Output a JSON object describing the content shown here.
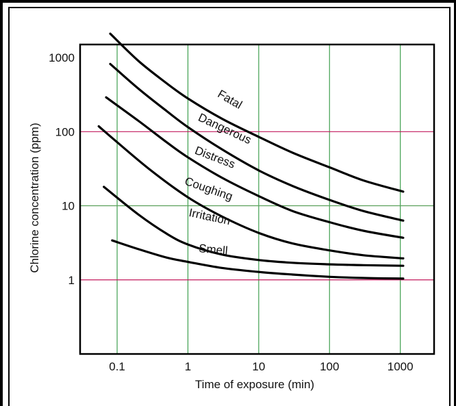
{
  "chart_data": {
    "type": "line",
    "title": "",
    "xlabel": "Time of exposure (min)",
    "ylabel": "Chlorine concentration (ppm)",
    "x_scale": "log",
    "y_scale": "log",
    "xlim": [
      0.03,
      3000
    ],
    "ylim": [
      0.1,
      1500
    ],
    "x_ticks": [
      {
        "value": 0.1,
        "label": "0.1"
      },
      {
        "value": 1,
        "label": "1"
      },
      {
        "value": 10,
        "label": "10"
      },
      {
        "value": 100,
        "label": "100"
      },
      {
        "value": 1000,
        "label": "1000"
      }
    ],
    "y_ticks": [
      {
        "value": 1,
        "label": "1"
      },
      {
        "value": 10,
        "label": "10"
      },
      {
        "value": 100,
        "label": "100"
      },
      {
        "value": 1000,
        "label": "1000"
      }
    ],
    "grid": true,
    "colors": {
      "grid_horizontal_100": "#c2185b",
      "grid_horizontal_10": "#5aa05a",
      "grid_horizontal_1": "#c2185b",
      "grid_vertical": "#3f9f4f",
      "curves": "#000000"
    },
    "series": [
      {
        "name": "Fatal",
        "x": [
          0.08,
          0.2,
          0.5,
          1,
          3,
          10,
          30,
          100,
          300,
          1100
        ],
        "y": [
          2100,
          900,
          450,
          280,
          150,
          85,
          52,
          33,
          22,
          15.5
        ]
      },
      {
        "name": "Dangerous",
        "x": [
          0.08,
          0.2,
          0.5,
          1,
          3,
          10,
          30,
          100,
          300,
          1100
        ],
        "y": [
          820,
          380,
          190,
          115,
          58,
          30,
          18.5,
          12,
          8.5,
          6.3
        ]
      },
      {
        "name": "Distress",
        "x": [
          0.07,
          0.2,
          0.5,
          1,
          3,
          10,
          30,
          100,
          300,
          1100
        ],
        "y": [
          290,
          140,
          72,
          45,
          24,
          13.5,
          8.5,
          6,
          4.6,
          3.7
        ]
      },
      {
        "name": "Coughing",
        "x": [
          0.055,
          0.1,
          0.3,
          1,
          3,
          10,
          30,
          100,
          300,
          1100
        ],
        "y": [
          118,
          72,
          30,
          13,
          7.2,
          4.3,
          3.1,
          2.5,
          2.15,
          1.95
        ]
      },
      {
        "name": "Irritation",
        "x": [
          0.065,
          0.2,
          0.5,
          1,
          3,
          10,
          30,
          100,
          300,
          1100
        ],
        "y": [
          18,
          7.6,
          4.2,
          3.0,
          2.2,
          1.85,
          1.7,
          1.62,
          1.58,
          1.55
        ]
      },
      {
        "name": "Smell",
        "x": [
          0.085,
          0.2,
          0.5,
          1,
          3,
          10,
          30,
          100,
          300,
          1100
        ],
        "y": [
          3.4,
          2.6,
          2.0,
          1.75,
          1.45,
          1.28,
          1.18,
          1.1,
          1.06,
          1.04
        ]
      }
    ]
  }
}
